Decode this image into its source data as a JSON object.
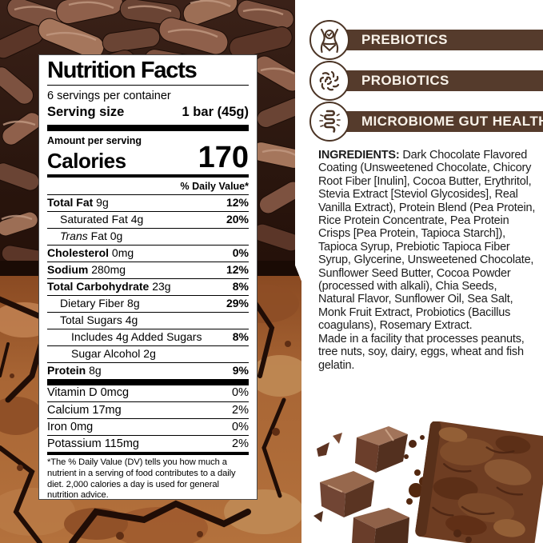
{
  "nutrition_label": {
    "title": "Nutrition Facts",
    "servings_per_container": "6 servings per container",
    "serving_size_label": "Serving size",
    "serving_size_value": "1 bar (45g)",
    "amount_per_serving": "Amount per serving",
    "calories_label": "Calories",
    "calories_value": "170",
    "daily_value_header": "% Daily Value*",
    "rows": [
      {
        "label": "Total Fat",
        "qty": "9g",
        "dv": "12%",
        "major": true,
        "indent": 0
      },
      {
        "label": "Saturated Fat",
        "qty": "4g",
        "dv": "20%",
        "major": false,
        "indent": 1
      },
      {
        "label": "Trans Fat",
        "qty": "0g",
        "dv": "",
        "major": false,
        "indent": 1,
        "italic_prefix": true
      },
      {
        "label": "Cholesterol",
        "qty": "0mg",
        "dv": "0%",
        "major": true,
        "indent": 0
      },
      {
        "label": "Sodium",
        "qty": "280mg",
        "dv": "12%",
        "major": true,
        "indent": 0
      },
      {
        "label": "Total Carbohydrate",
        "qty": "23g",
        "dv": "8%",
        "major": true,
        "indent": 0
      },
      {
        "label": "Dietary Fiber",
        "qty": "8g",
        "dv": "29%",
        "major": false,
        "indent": 1
      },
      {
        "label": "Total Sugars",
        "qty": "4g",
        "dv": "",
        "major": false,
        "indent": 1
      },
      {
        "label": "Includes 4g Added Sugars",
        "qty": "",
        "dv": "8%",
        "major": false,
        "indent": 2
      },
      {
        "label": "Sugar Alcohol",
        "qty": "2g",
        "dv": "",
        "major": false,
        "indent": 2
      },
      {
        "label": "Protein",
        "qty": "8g",
        "dv": "9%",
        "major": true,
        "indent": 0
      }
    ],
    "micros": [
      {
        "label": "Vitamin D 0mcg",
        "dv": "0%"
      },
      {
        "label": "Calcium 17mg",
        "dv": "2%"
      },
      {
        "label": "Iron 0mg",
        "dv": "0%"
      },
      {
        "label": "Potassium 115mg",
        "dv": "2%"
      }
    ],
    "footnote": "*The % Daily Value (DV) tells you how much a nutrient in a serving of food contributes to a daily diet. 2,000 calories a day is used for general nutrition advice."
  },
  "badges": [
    {
      "label": "PREBIOTICS",
      "icon": "waist-check-icon"
    },
    {
      "label": "PROBIOTICS",
      "icon": "bacteria-icon"
    },
    {
      "label": "MICROBIOME GUT HEALTH",
      "icon": "gut-icon"
    }
  ],
  "ingredients": {
    "heading": "INGREDIENTS:",
    "text": " Dark Chocolate Flavored Coating (Unsweetened Chocolate, Chicory Root Fiber [Inulin], Cocoa Butter, Erythritol, Stevia Extract [Steviol Glycosides], Real Vanilla Extract), Protein Blend (Pea Protein, Rice Protein Concentrate, Pea Protein Crisps [Pea Protein, Tapioca Starch]), Tapioca Syrup, Prebiotic Tapioca Fiber Syrup, Glycerine, Unsweetened Chocolate, Sunflower Seed Butter, Cocoa Powder (processed with alkali), Chia Seeds, Natural Flavor, Sunflower Oil, Sea Salt, Monk Fruit Extract, Probiotics (Bacillus coagulans), Rosemary Extract.",
    "allergen_note": "Made in a facility that processes peanuts, tree nuts, soy, dairy, eggs, wheat and fish gelatin."
  },
  "colors": {
    "badge_brown": "#553B2C",
    "badge_text": "#F8F2E9",
    "icon_outline": "#4B3425",
    "panel_border": "#4A4A4A",
    "photo_dark_brown": "#2E1A12",
    "brownie_orange": "#A06033"
  }
}
